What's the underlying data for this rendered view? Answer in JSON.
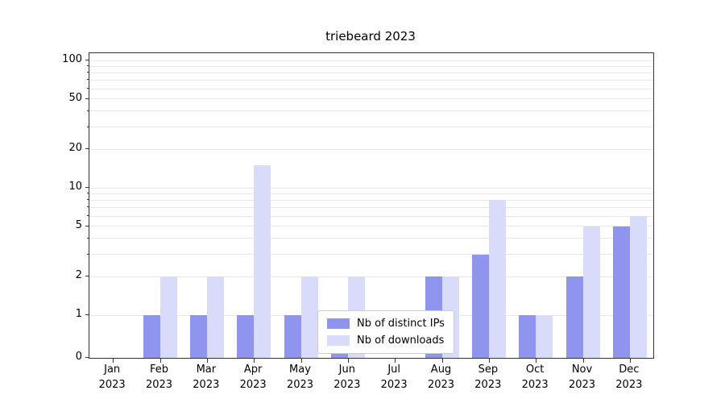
{
  "title": "triebeard 2023",
  "chart_data": {
    "type": "bar",
    "categories": [
      "Jan 2023",
      "Feb 2023",
      "Mar 2023",
      "Apr 2023",
      "May 2023",
      "Jun 2023",
      "Jul 2023",
      "Aug 2023",
      "Sep 2023",
      "Oct 2023",
      "Nov 2023",
      "Dec 2023"
    ],
    "series": [
      {
        "name": "Nb of distinct IPs",
        "color": "#8f94ee",
        "values": [
          0,
          1,
          1,
          1,
          1,
          1,
          0,
          2,
          3,
          1,
          2,
          5
        ]
      },
      {
        "name": "Nb of downloads",
        "color": "#d9dbfa",
        "values": [
          0,
          2,
          2,
          15,
          2,
          2,
          0,
          2,
          8,
          1,
          5,
          6
        ]
      }
    ],
    "y_scale": "symlog",
    "ylim": [
      0,
      115
    ],
    "y_ticks": [
      0,
      1,
      2,
      5,
      10,
      20,
      50,
      100
    ],
    "gridline_values": [
      1,
      2,
      3,
      4,
      5,
      6,
      7,
      8,
      9,
      10,
      20,
      30,
      40,
      50,
      60,
      70,
      80,
      90,
      100
    ],
    "grid": true,
    "legend_position": "lower center"
  }
}
